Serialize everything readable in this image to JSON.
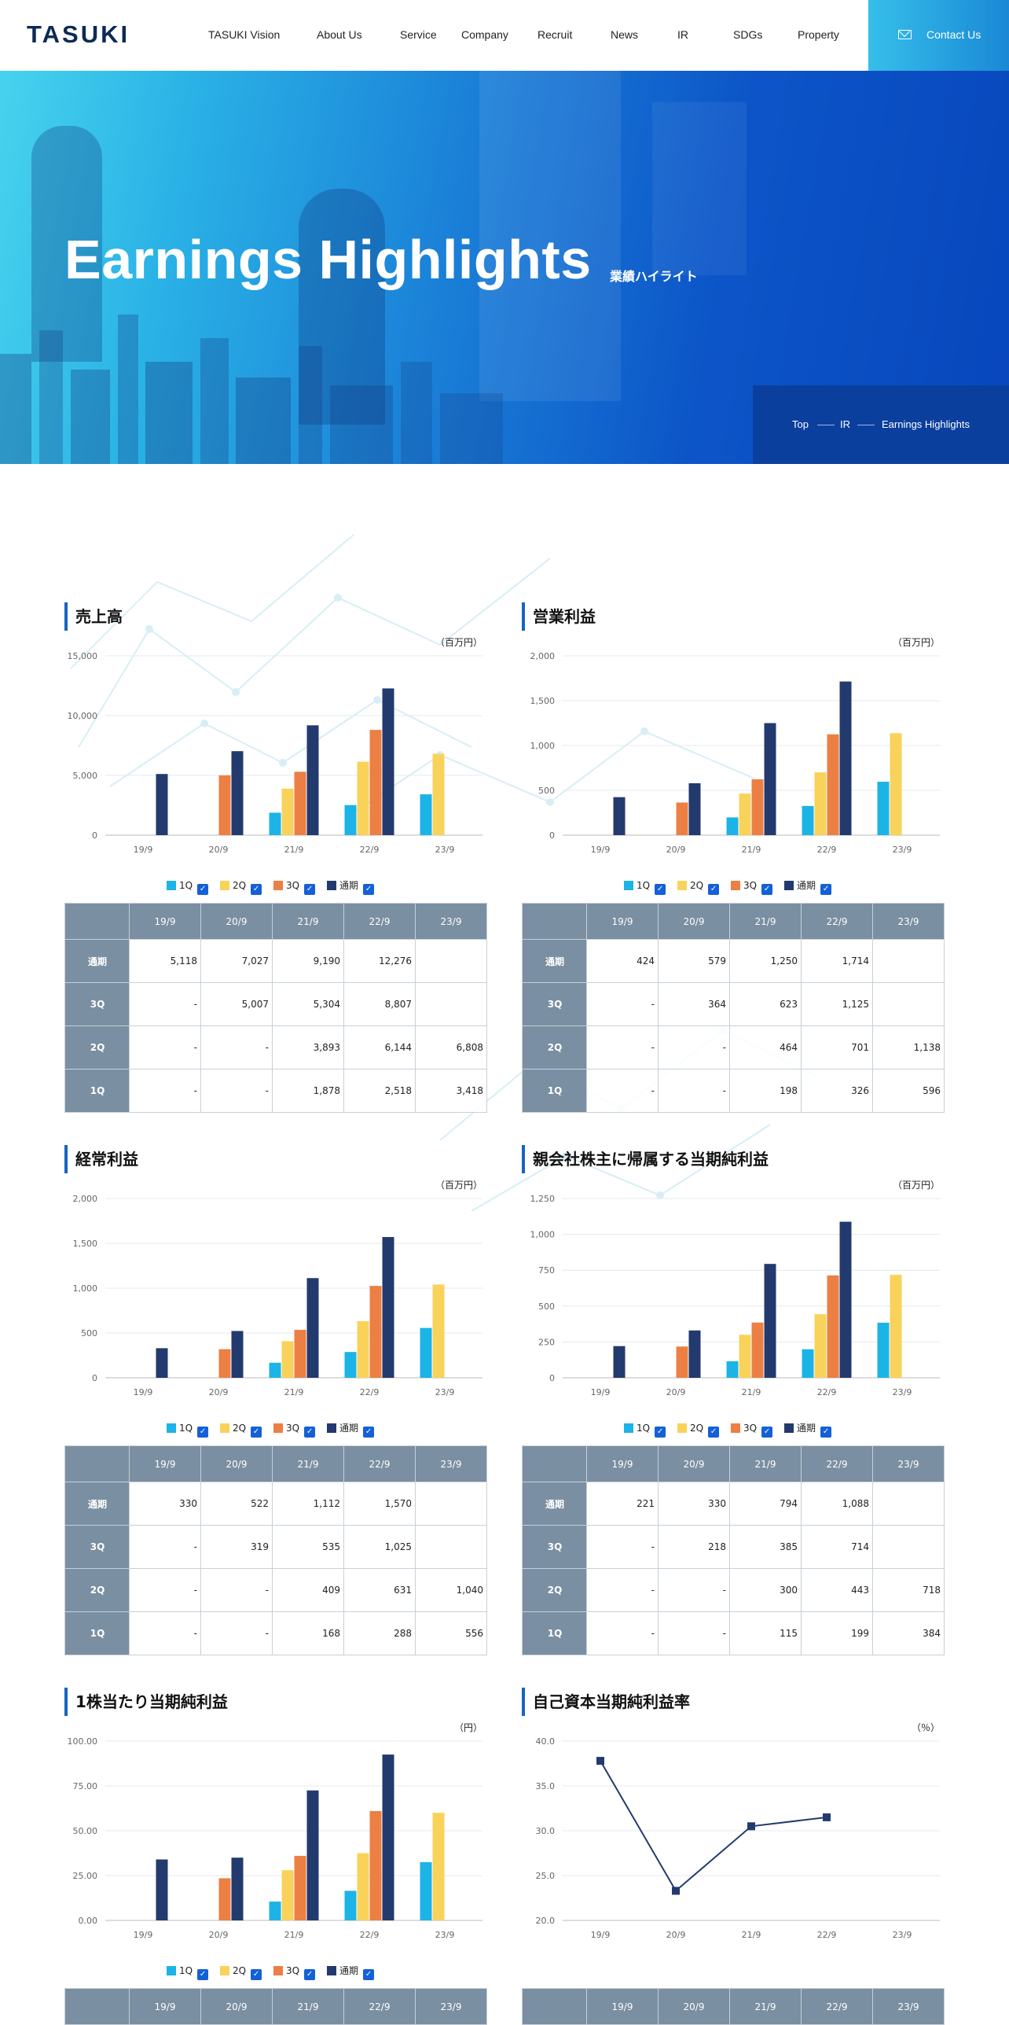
{
  "header": {
    "logo": "TASUKI",
    "nav": [
      "TASUKI Vision",
      "About Us",
      "Service",
      "Company",
      "Recruit",
      "News",
      "IR",
      "SDGs",
      "Property"
    ],
    "contact_label": "Contact Us"
  },
  "hero": {
    "title": "Earnings Highlights",
    "subtitle": "業績ハイライト",
    "breadcrumb": [
      "Top",
      "IR",
      "Earnings Highlights"
    ]
  },
  "colors": {
    "q1": "#1cb4e6",
    "q2": "#f9d25a",
    "q3": "#ec7f44",
    "full": "#233a6e",
    "header": "#7a8fa1",
    "accent": "#1565c0"
  },
  "legend": [
    "1Q",
    "2Q",
    "3Q",
    "通期"
  ],
  "table_rows": [
    "通期",
    "3Q",
    "2Q",
    "1Q"
  ],
  "chart_data": [
    {
      "type": "bar",
      "title": "売上高",
      "unit": "（百万円）",
      "categories": [
        "19/9",
        "20/9",
        "21/9",
        "22/9",
        "23/9"
      ],
      "ylim": [
        0,
        15000
      ],
      "yticks": [
        "0",
        "5,000",
        "10,000",
        "15,000"
      ],
      "series": [
        {
          "name": "1Q",
          "values": [
            null,
            null,
            1878,
            2518,
            3418
          ],
          "labels": [
            "-",
            "-",
            "1,878",
            "2,518",
            "3,418"
          ]
        },
        {
          "name": "2Q",
          "values": [
            null,
            null,
            3893,
            6144,
            6808
          ],
          "labels": [
            "-",
            "-",
            "3,893",
            "6,144",
            "6,808"
          ]
        },
        {
          "name": "3Q",
          "values": [
            null,
            5007,
            5304,
            8807,
            null
          ],
          "labels": [
            "-",
            "5,007",
            "5,304",
            "8,807",
            ""
          ]
        },
        {
          "name": "通期",
          "values": [
            5118,
            7027,
            9190,
            12276,
            null
          ],
          "labels": [
            "5,118",
            "7,027",
            "9,190",
            "12,276",
            ""
          ]
        }
      ]
    },
    {
      "type": "bar",
      "title": "営業利益",
      "unit": "（百万円）",
      "categories": [
        "19/9",
        "20/9",
        "21/9",
        "22/9",
        "23/9"
      ],
      "ylim": [
        0,
        2000
      ],
      "yticks": [
        "0",
        "500",
        "1,000",
        "1,500",
        "2,000"
      ],
      "series": [
        {
          "name": "1Q",
          "values": [
            null,
            null,
            198,
            326,
            596
          ],
          "labels": [
            "-",
            "-",
            "198",
            "326",
            "596"
          ]
        },
        {
          "name": "2Q",
          "values": [
            null,
            null,
            464,
            701,
            1138
          ],
          "labels": [
            "-",
            "-",
            "464",
            "701",
            "1,138"
          ]
        },
        {
          "name": "3Q",
          "values": [
            null,
            364,
            623,
            1125,
            null
          ],
          "labels": [
            "-",
            "364",
            "623",
            "1,125",
            ""
          ]
        },
        {
          "name": "通期",
          "values": [
            424,
            579,
            1250,
            1714,
            null
          ],
          "labels": [
            "424",
            "579",
            "1,250",
            "1,714",
            ""
          ]
        }
      ]
    },
    {
      "type": "bar",
      "title": "経常利益",
      "unit": "（百万円）",
      "categories": [
        "19/9",
        "20/9",
        "21/9",
        "22/9",
        "23/9"
      ],
      "ylim": [
        0,
        2000
      ],
      "yticks": [
        "0",
        "500",
        "1,000",
        "1,500",
        "2,000"
      ],
      "series": [
        {
          "name": "1Q",
          "values": [
            null,
            null,
            168,
            288,
            556
          ],
          "labels": [
            "-",
            "-",
            "168",
            "288",
            "556"
          ]
        },
        {
          "name": "2Q",
          "values": [
            null,
            null,
            409,
            631,
            1040
          ],
          "labels": [
            "-",
            "-",
            "409",
            "631",
            "1,040"
          ]
        },
        {
          "name": "3Q",
          "values": [
            null,
            319,
            535,
            1025,
            null
          ],
          "labels": [
            "-",
            "319",
            "535",
            "1,025",
            ""
          ]
        },
        {
          "name": "通期",
          "values": [
            330,
            522,
            1112,
            1570,
            null
          ],
          "labels": [
            "330",
            "522",
            "1,112",
            "1,570",
            ""
          ]
        }
      ]
    },
    {
      "type": "bar",
      "title": "親会社株主に帰属する当期純利益",
      "unit": "（百万円）",
      "categories": [
        "19/9",
        "20/9",
        "21/9",
        "22/9",
        "23/9"
      ],
      "ylim": [
        0,
        1250
      ],
      "yticks": [
        "0",
        "250",
        "500",
        "750",
        "1,000",
        "1,250"
      ],
      "series": [
        {
          "name": "1Q",
          "values": [
            null,
            null,
            115,
            199,
            384
          ],
          "labels": [
            "-",
            "-",
            "115",
            "199",
            "384"
          ]
        },
        {
          "name": "2Q",
          "values": [
            null,
            null,
            300,
            443,
            718
          ],
          "labels": [
            "-",
            "-",
            "300",
            "443",
            "718"
          ]
        },
        {
          "name": "3Q",
          "values": [
            null,
            218,
            385,
            714,
            null
          ],
          "labels": [
            "-",
            "218",
            "385",
            "714",
            ""
          ]
        },
        {
          "name": "通期",
          "values": [
            221,
            330,
            794,
            1088,
            null
          ],
          "labels": [
            "221",
            "330",
            "794",
            "1,088",
            ""
          ]
        }
      ]
    },
    {
      "type": "bar",
      "title": "1株当たり当期純利益",
      "unit": "（円）",
      "categories": [
        "19/9",
        "20/9",
        "21/9",
        "22/9",
        "23/9"
      ],
      "ylim": [
        0,
        100
      ],
      "yticks": [
        "0.00",
        "25.00",
        "50.00",
        "75.00",
        "100.00"
      ],
      "series": [
        {
          "name": "1Q",
          "values": [
            null,
            null,
            10.5,
            16.5,
            32.5
          ]
        },
        {
          "name": "2Q",
          "values": [
            null,
            null,
            28,
            37.5,
            60
          ]
        },
        {
          "name": "3Q",
          "values": [
            null,
            23.5,
            36,
            61,
            null
          ]
        },
        {
          "name": "通期",
          "values": [
            34,
            35,
            72.5,
            92.5,
            null
          ]
        }
      ]
    },
    {
      "type": "line",
      "title": "自己資本当期純利益率",
      "unit": "（％）",
      "categories": [
        "19/9",
        "20/9",
        "21/9",
        "22/9",
        "23/9"
      ],
      "ylim": [
        20,
        40
      ],
      "yticks": [
        "20.0",
        "25.0",
        "30.0",
        "35.0",
        "40.0"
      ],
      "series": [
        {
          "name": "通期",
          "values": [
            37.8,
            23.3,
            30.5,
            31.5,
            null
          ]
        }
      ]
    }
  ],
  "table_header_partial": [
    "19/9",
    "20/9",
    "21/9",
    "22/9",
    "23/9"
  ]
}
